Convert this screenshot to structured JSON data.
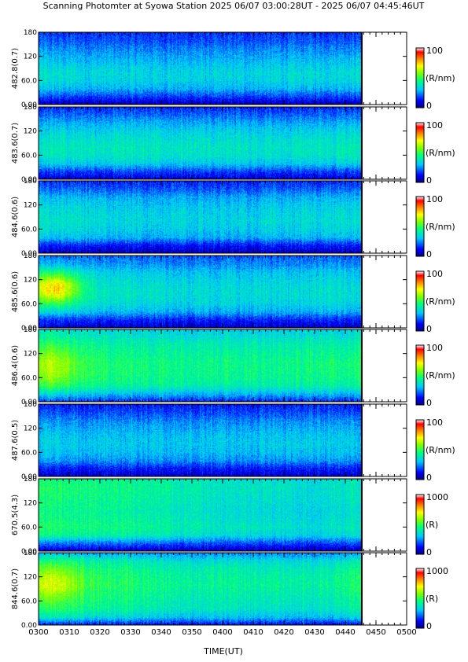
{
  "title": "Scanning Photomter at Syowa Station  2025 06/07 03:00:28UT - 2025 06/07 04:45:46UT",
  "chart_data": {
    "type": "heatmap",
    "title": "Scanning Photomter at Syowa Station  2025 06/07 03:00:28UT - 2025 06/07 04:45:46UT",
    "xlabel": "TIME(UT)",
    "x_ticks": [
      "0300",
      "0310",
      "0320",
      "0330",
      "0340",
      "0350",
      "0400",
      "0410",
      "0420",
      "0430",
      "0440",
      "0450",
      "0500"
    ],
    "x_range_minutes_after_0300": [
      0,
      120
    ],
    "data_end_minutes_after_0300": 105.3,
    "y_ticks": [
      "0.00",
      "60.0",
      "120",
      "180"
    ],
    "y_range": [
      0,
      180
    ],
    "colorscale": [
      "#000080",
      "#0000ff",
      "#00c8ff",
      "#00ff80",
      "#80ff00",
      "#ffff00",
      "#ff8000",
      "#ff0000",
      "#ffffff"
    ],
    "panels": [
      {
        "ylabel": "482.8(0.7)",
        "cbar_max": "100",
        "cbar_min": "0",
        "cbar_unit": "(R/nm)",
        "profile_y": [
          0,
          20,
          40,
          60,
          80,
          100,
          120,
          140,
          160,
          180
        ],
        "profile_level": [
          0.05,
          0.18,
          0.3,
          0.35,
          0.36,
          0.33,
          0.29,
          0.25,
          0.2,
          0.17
        ],
        "time_trend": [
          [
            0,
            1.0
          ],
          [
            20,
            0.95
          ],
          [
            60,
            0.92
          ],
          [
            105,
            1.0
          ]
        ],
        "hotspot": null
      },
      {
        "ylabel": "483.6(0.7)",
        "cbar_max": "100",
        "cbar_min": "0",
        "cbar_unit": "(R/nm)",
        "profile_y": [
          0,
          20,
          40,
          60,
          80,
          100,
          120,
          140,
          160,
          180
        ],
        "profile_level": [
          0.08,
          0.18,
          0.33,
          0.38,
          0.39,
          0.37,
          0.34,
          0.29,
          0.22,
          0.16
        ],
        "time_trend": [
          [
            0,
            1.0
          ],
          [
            30,
            0.98
          ],
          [
            70,
            0.95
          ],
          [
            105,
            1.0
          ]
        ],
        "hotspot": null
      },
      {
        "ylabel": "484.6(0.6)",
        "cbar_max": "100",
        "cbar_min": "0",
        "cbar_unit": "(R/nm)",
        "profile_y": [
          0,
          20,
          40,
          60,
          80,
          100,
          120,
          140,
          160,
          180
        ],
        "profile_level": [
          0.06,
          0.14,
          0.3,
          0.34,
          0.36,
          0.35,
          0.33,
          0.29,
          0.21,
          0.16
        ],
        "time_trend": [
          [
            0,
            1.05
          ],
          [
            30,
            0.95
          ],
          [
            70,
            0.92
          ],
          [
            105,
            1.0
          ]
        ],
        "hotspot": null
      },
      {
        "ylabel": "485.6(0.6)",
        "cbar_max": "100",
        "cbar_min": "0",
        "cbar_unit": "(R/nm)",
        "profile_y": [
          0,
          20,
          40,
          60,
          80,
          100,
          120,
          140,
          160,
          180
        ],
        "profile_level": [
          0.08,
          0.15,
          0.3,
          0.36,
          0.38,
          0.38,
          0.36,
          0.33,
          0.26,
          0.22
        ],
        "time_trend": [
          [
            0,
            1.05
          ],
          [
            30,
            0.96
          ],
          [
            70,
            0.9
          ],
          [
            105,
            0.95
          ]
        ],
        "hotspot": {
          "t": 5,
          "y": 100,
          "dt": 8,
          "dy": 40,
          "add": 0.35
        }
      },
      {
        "ylabel": "486.4(0.6)",
        "cbar_max": "100",
        "cbar_min": "0",
        "cbar_unit": "(R/nm)",
        "profile_y": [
          0,
          20,
          40,
          60,
          80,
          100,
          120,
          140,
          160,
          180
        ],
        "profile_level": [
          0.15,
          0.3,
          0.42,
          0.45,
          0.46,
          0.46,
          0.44,
          0.42,
          0.38,
          0.34
        ],
        "time_trend": [
          [
            0,
            1.12
          ],
          [
            15,
            1.02
          ],
          [
            40,
            0.98
          ],
          [
            80,
            0.95
          ],
          [
            105,
            1.0
          ]
        ],
        "hotspot": {
          "t": 4,
          "y": 90,
          "dt": 9,
          "dy": 50,
          "add": 0.12
        }
      },
      {
        "ylabel": "487.6(0.5)",
        "cbar_max": "100",
        "cbar_min": "0",
        "cbar_unit": "(R/nm)",
        "profile_y": [
          0,
          20,
          40,
          60,
          80,
          100,
          120,
          140,
          160,
          180
        ],
        "profile_level": [
          0.08,
          0.14,
          0.26,
          0.31,
          0.33,
          0.32,
          0.29,
          0.25,
          0.19,
          0.15
        ],
        "time_trend": [
          [
            0,
            1.0
          ],
          [
            40,
            0.94
          ],
          [
            105,
            0.98
          ]
        ],
        "hotspot": null
      },
      {
        "ylabel": "670.5(4.3)",
        "cbar_max": "1000",
        "cbar_min": "0",
        "cbar_unit": "(R)",
        "profile_y": [
          0,
          20,
          40,
          60,
          80,
          100,
          120,
          140,
          160,
          180
        ],
        "profile_level": [
          0.06,
          0.22,
          0.42,
          0.46,
          0.44,
          0.43,
          0.44,
          0.45,
          0.46,
          0.44
        ],
        "time_trend": [
          [
            0,
            1.05
          ],
          [
            30,
            0.95
          ],
          [
            60,
            0.82
          ],
          [
            90,
            0.78
          ],
          [
            105,
            0.85
          ]
        ],
        "hotspot": null
      },
      {
        "ylabel": "844.6(0.7)",
        "cbar_max": "1000",
        "cbar_min": "0",
        "cbar_unit": "(R)",
        "profile_y": [
          0,
          20,
          40,
          60,
          80,
          100,
          120,
          140,
          160,
          180
        ],
        "profile_level": [
          0.12,
          0.34,
          0.42,
          0.44,
          0.46,
          0.48,
          0.47,
          0.45,
          0.4,
          0.28
        ],
        "time_trend": [
          [
            0,
            1.12
          ],
          [
            20,
            1.02
          ],
          [
            50,
            0.88
          ],
          [
            90,
            0.86
          ],
          [
            105,
            1.0
          ]
        ],
        "hotspot": {
          "t": 4,
          "y": 105,
          "dt": 9,
          "dy": 45,
          "add": 0.14
        }
      }
    ]
  }
}
